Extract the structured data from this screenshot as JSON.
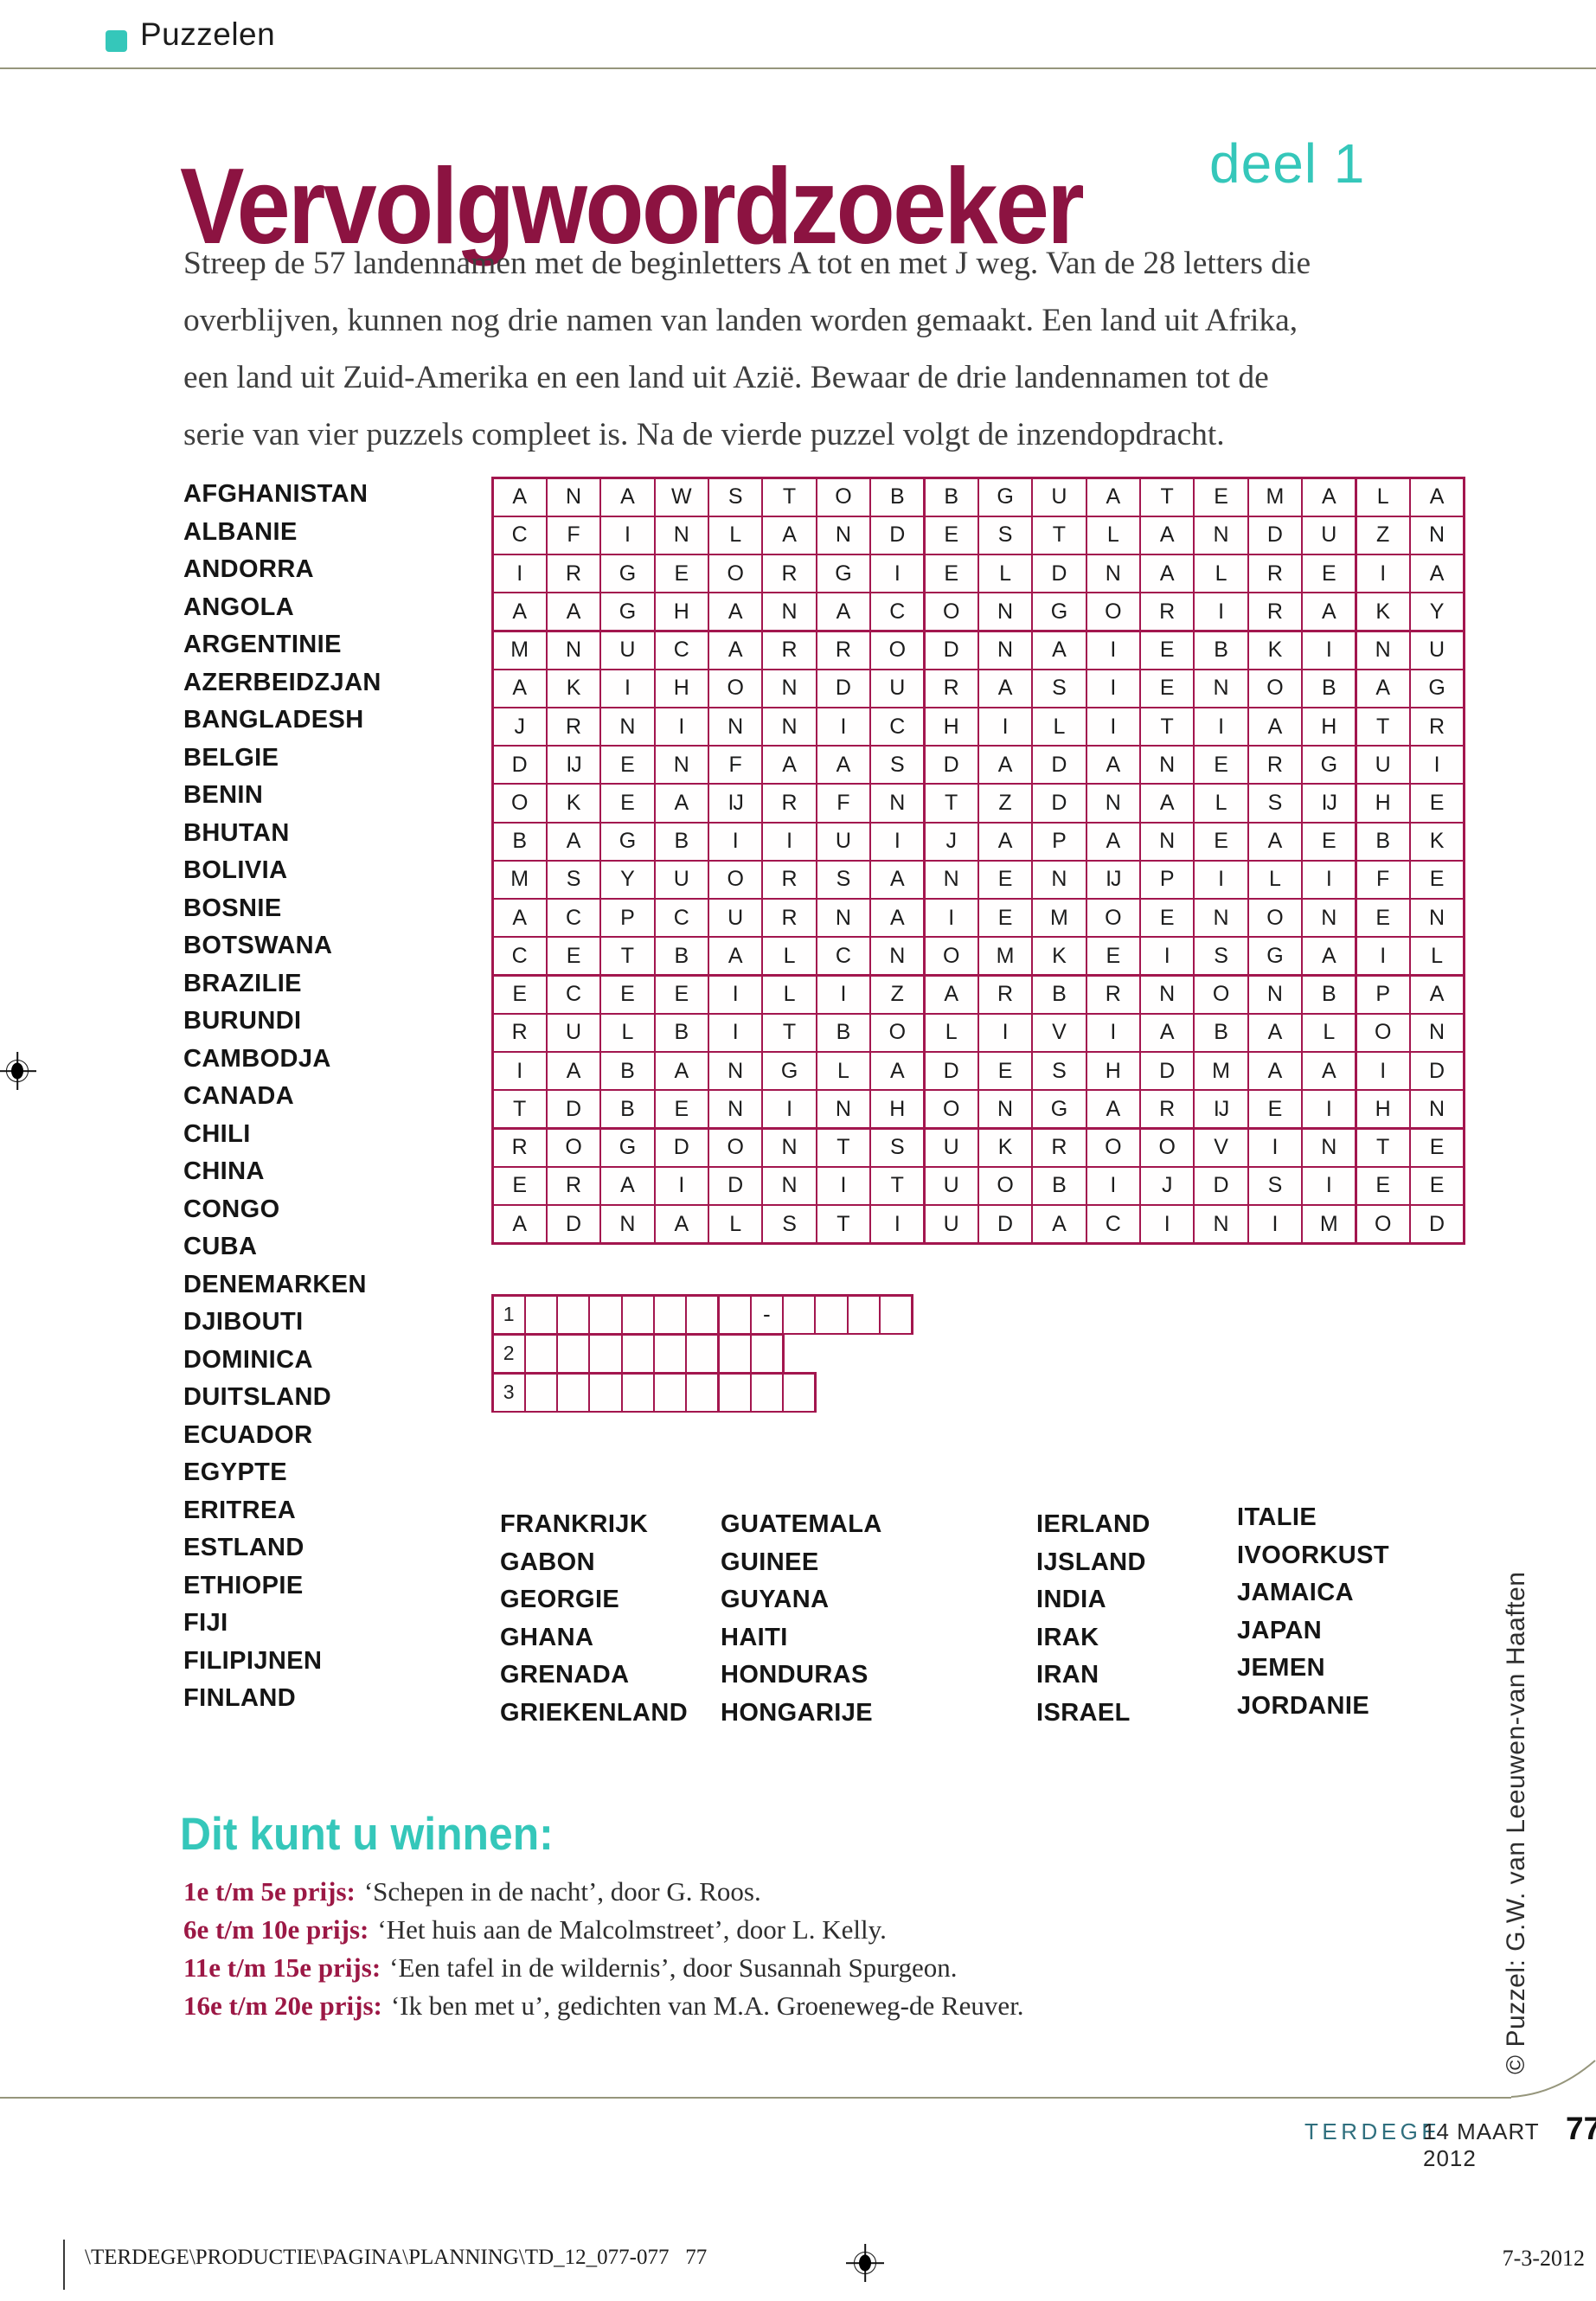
{
  "header": {
    "section_label": "Puzzelen",
    "title": "Vervolgwoordzoeker",
    "subtitle": "deel 1"
  },
  "intro": {
    "lines": [
      "Streep de 57 landennamen met de beginletters A tot en met J weg. Van de 28 letters die",
      "overblijven, kunnen nog drie namen van landen worden gemaakt. Een land uit Afrika,",
      "een land uit Zuid-Amerika en een land uit Azië. Bewaar de drie landennamen tot de",
      "serie van vier puzzels compleet is. Na de vierde puzzel volgt de inzendopdracht."
    ]
  },
  "word_list_left": [
    "AFGHANISTAN",
    "ALBANIE",
    "ANDORRA",
    "ANGOLA",
    "ARGENTINIE",
    "AZERBEIDZJAN",
    "BANGLADESH",
    "BELGIE",
    "BENIN",
    "BHUTAN",
    "BOLIVIA",
    "BOSNIE",
    "BOTSWANA",
    "BRAZILIE",
    "BURUNDI",
    "CAMBODJA",
    "CANADA",
    "CHILI",
    "CHINA",
    "CONGO",
    "CUBA",
    "DENEMARKEN",
    "DJIBOUTI",
    "DOMINICA",
    "DUITSLAND",
    "ECUADOR",
    "EGYPTE",
    "ERITREA",
    "ESTLAND",
    "ETHIOPIE",
    "FIJI",
    "FILIPIJNEN",
    "FINLAND"
  ],
  "word_columns": [
    [
      "FRANKRIJK",
      "GABON",
      "GEORGIE",
      "GHANA",
      "GRENADA",
      "GRIEKENLAND"
    ],
    [
      "GUATEMALA",
      "GUINEE",
      "GUYANA",
      "HAITI",
      "HONDURAS",
      "HONGARIJE"
    ],
    [
      "IERLAND",
      "IJSLAND",
      "INDIA",
      "IRAK",
      "IRAN",
      "ISRAEL"
    ],
    [
      "ITALIE",
      "IVOORKUST",
      "JAMAICA",
      "JAPAN",
      "JEMEN",
      "JORDANIE"
    ]
  ],
  "grid": {
    "rows": [
      [
        "A",
        "N",
        "A",
        "W",
        "S",
        "T",
        "O",
        "B",
        "B",
        "G",
        "U",
        "A",
        "T",
        "E",
        "M",
        "A",
        "L",
        "A"
      ],
      [
        "C",
        "F",
        "I",
        "N",
        "L",
        "A",
        "N",
        "D",
        "E",
        "S",
        "T",
        "L",
        "A",
        "N",
        "D",
        "U",
        "Z",
        "N"
      ],
      [
        "I",
        "R",
        "G",
        "E",
        "O",
        "R",
        "G",
        "I",
        "E",
        "L",
        "D",
        "N",
        "A",
        "L",
        "R",
        "E",
        "I",
        "A"
      ],
      [
        "A",
        "A",
        "G",
        "H",
        "A",
        "N",
        "A",
        "C",
        "O",
        "N",
        "G",
        "O",
        "R",
        "I",
        "R",
        "A",
        "K",
        "Y"
      ],
      [
        "M",
        "N",
        "U",
        "C",
        "A",
        "R",
        "R",
        "O",
        "D",
        "N",
        "A",
        "I",
        "E",
        "B",
        "K",
        "I",
        "N",
        "U"
      ],
      [
        "A",
        "K",
        "I",
        "H",
        "O",
        "N",
        "D",
        "U",
        "R",
        "A",
        "S",
        "I",
        "E",
        "N",
        "O",
        "B",
        "A",
        "G"
      ],
      [
        "J",
        "R",
        "N",
        "I",
        "N",
        "N",
        "I",
        "C",
        "H",
        "I",
        "L",
        "I",
        "T",
        "I",
        "A",
        "H",
        "T",
        "R"
      ],
      [
        "D",
        "IJ",
        "E",
        "N",
        "F",
        "A",
        "A",
        "S",
        "D",
        "A",
        "D",
        "A",
        "N",
        "E",
        "R",
        "G",
        "U",
        "I"
      ],
      [
        "O",
        "K",
        "E",
        "A",
        "IJ",
        "R",
        "F",
        "N",
        "T",
        "Z",
        "D",
        "N",
        "A",
        "L",
        "S",
        "IJ",
        "H",
        "E"
      ],
      [
        "B",
        "A",
        "G",
        "B",
        "I",
        "I",
        "U",
        "I",
        "J",
        "A",
        "P",
        "A",
        "N",
        "E",
        "A",
        "E",
        "B",
        "K"
      ],
      [
        "M",
        "S",
        "Y",
        "U",
        "O",
        "R",
        "S",
        "A",
        "N",
        "E",
        "N",
        "IJ",
        "P",
        "I",
        "L",
        "I",
        "F",
        "E"
      ],
      [
        "A",
        "C",
        "P",
        "C",
        "U",
        "R",
        "N",
        "A",
        "I",
        "E",
        "M",
        "O",
        "E",
        "N",
        "O",
        "N",
        "E",
        "N"
      ],
      [
        "C",
        "E",
        "T",
        "B",
        "A",
        "L",
        "C",
        "N",
        "O",
        "M",
        "K",
        "E",
        "I",
        "S",
        "G",
        "A",
        "I",
        "L"
      ],
      [
        "E",
        "C",
        "E",
        "E",
        "I",
        "L",
        "I",
        "Z",
        "A",
        "R",
        "B",
        "R",
        "N",
        "O",
        "N",
        "B",
        "P",
        "A"
      ],
      [
        "R",
        "U",
        "L",
        "B",
        "I",
        "T",
        "B",
        "O",
        "L",
        "I",
        "V",
        "I",
        "A",
        "B",
        "A",
        "L",
        "O",
        "N"
      ],
      [
        "I",
        "A",
        "B",
        "A",
        "N",
        "G",
        "L",
        "A",
        "D",
        "E",
        "S",
        "H",
        "D",
        "M",
        "A",
        "A",
        "I",
        "D"
      ],
      [
        "T",
        "D",
        "B",
        "E",
        "N",
        "I",
        "N",
        "H",
        "O",
        "N",
        "G",
        "A",
        "R",
        "IJ",
        "E",
        "I",
        "H",
        "N"
      ],
      [
        "R",
        "O",
        "G",
        "D",
        "O",
        "N",
        "T",
        "S",
        "U",
        "K",
        "R",
        "O",
        "O",
        "V",
        "I",
        "N",
        "T",
        "E"
      ],
      [
        "E",
        "R",
        "A",
        "I",
        "D",
        "N",
        "I",
        "T",
        "U",
        "O",
        "B",
        "I",
        "J",
        "D",
        "S",
        "I",
        "E",
        "E"
      ],
      [
        "A",
        "D",
        "N",
        "A",
        "L",
        "S",
        "T",
        "I",
        "U",
        "D",
        "A",
        "C",
        "I",
        "N",
        "I",
        "M",
        "O",
        "D"
      ]
    ]
  },
  "answer_rows": [
    {
      "label": "1",
      "cells": 12,
      "prefill": {
        "8": "-"
      }
    },
    {
      "label": "2",
      "cells": 8,
      "prefill": {}
    },
    {
      "label": "3",
      "cells": 9,
      "prefill": {}
    }
  ],
  "prizes": {
    "heading": "Dit kunt u winnen:",
    "items": [
      {
        "label": "1e t/m 5e prijs:",
        "text": "‘Schepen in de nacht’, door G. Roos."
      },
      {
        "label": "6e t/m 10e prijs:",
        "text": "‘Het huis aan de Malcolmstreet’, door L. Kelly."
      },
      {
        "label": "11e t/m 15e prijs:",
        "text": "‘Een tafel in de wildernis’, door Susannah Spurgeon."
      },
      {
        "label": "16e t/m 20e prijs:",
        "text": "‘Ik ben met u’, gedichten van M.A. Groeneweg-de Reuver."
      }
    ]
  },
  "credit": "© Puzzel: G.W. van Leeuwen-van Haaften",
  "footer": {
    "magazine": "TERDEGE",
    "date": "14 MAART 2012",
    "page": "77",
    "production_path": "\\TERDEGE\\PRODUCTIE\\PAGINA\\PLANNING\\TD_12_077-077   77",
    "print_date": "7-3-2012"
  },
  "colors": {
    "title_maroon": "#8C1341",
    "grid_line": "#A3164E",
    "teal": "#35C7BA",
    "footer_teal": "#2F6F7E",
    "prize_label_maroon": "#9C1845",
    "rule_olive": "#96967C"
  }
}
